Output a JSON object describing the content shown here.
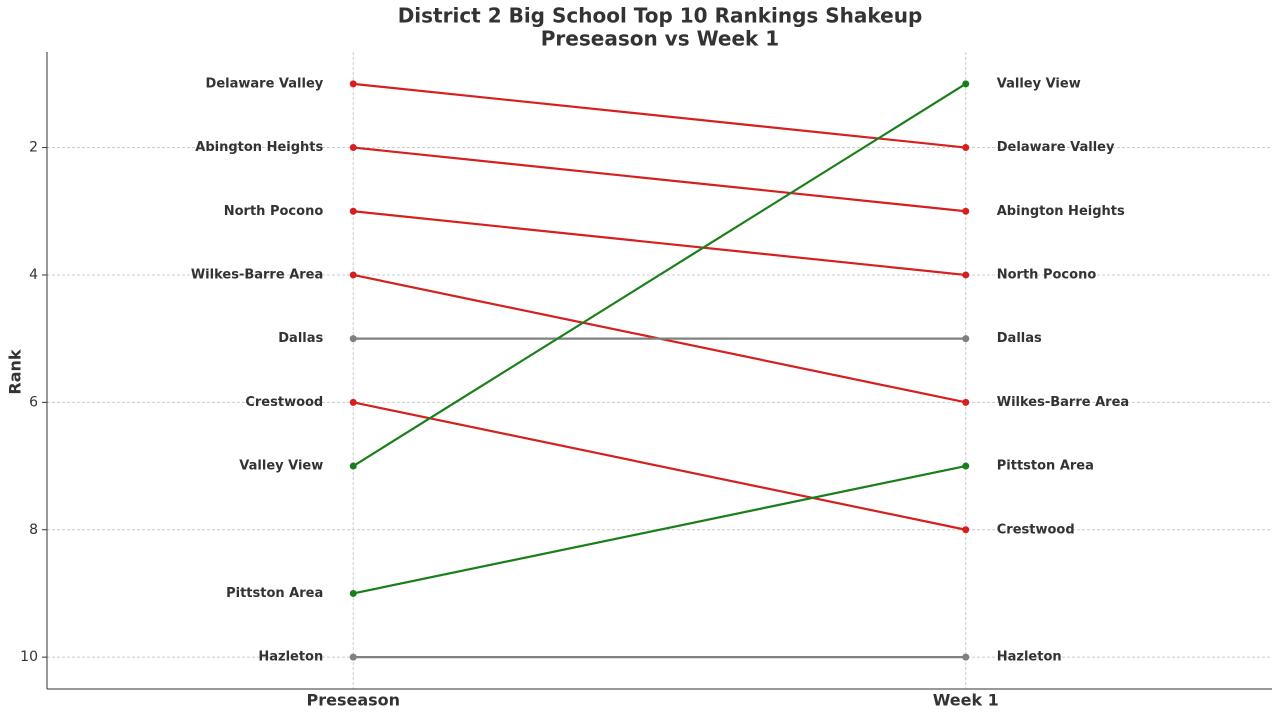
{
  "chart_data": {
    "type": "slope",
    "title": "District 2 Big School Top 10 Rankings Shakeup",
    "subtitle": "Preseason vs Week 1",
    "y_label": "Rank",
    "categories": [
      "Preseason",
      "Week 1"
    ],
    "series": [
      {
        "name": "Delaware Valley",
        "color": "#d62020",
        "values": [
          1,
          2
        ]
      },
      {
        "name": "Abington Heights",
        "color": "#d62020",
        "values": [
          2,
          3
        ]
      },
      {
        "name": "North Pocono",
        "color": "#d62020",
        "values": [
          3,
          4
        ]
      },
      {
        "name": "Wilkes-Barre Area",
        "color": "#d62020",
        "values": [
          4,
          6
        ]
      },
      {
        "name": "Dallas",
        "color": "#808080",
        "values": [
          5,
          5
        ]
      },
      {
        "name": "Crestwood",
        "color": "#d62020",
        "values": [
          6,
          8
        ]
      },
      {
        "name": "Valley View",
        "color": "#1a7f1a",
        "values": [
          7,
          1
        ]
      },
      {
        "name": "Pittston Area",
        "color": "#1a7f1a",
        "values": [
          9,
          7
        ]
      },
      {
        "name": "Hazleton",
        "color": "#808080",
        "values": [
          10,
          10
        ]
      }
    ],
    "ylim": [
      10.5,
      0.5
    ],
    "yticks": [
      2,
      4,
      6,
      8,
      10
    ],
    "grid": true
  }
}
